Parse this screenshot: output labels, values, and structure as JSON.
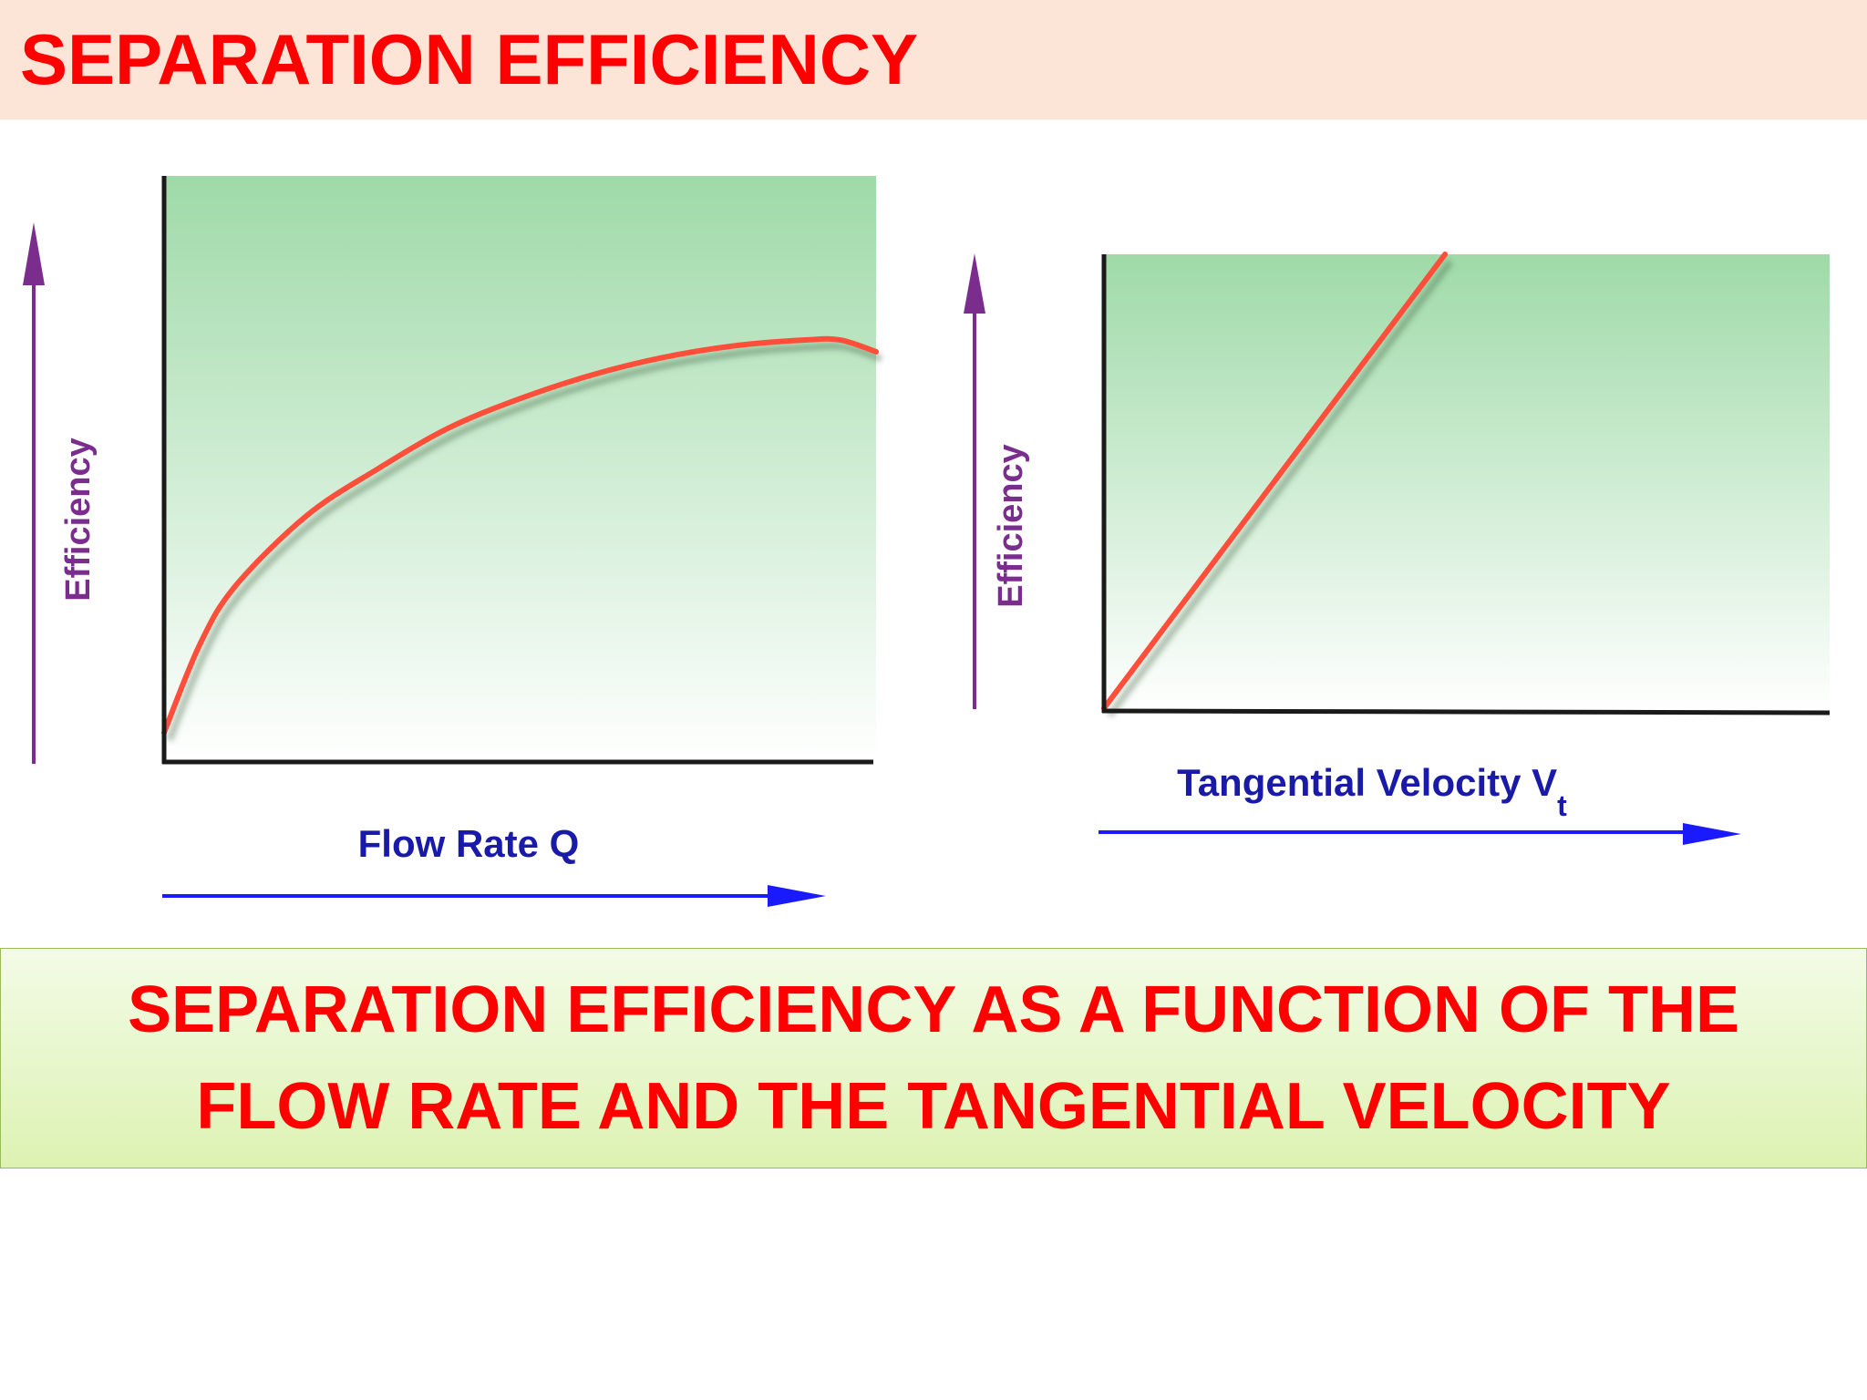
{
  "header": {
    "title": "SEPARATION EFFICIENCY"
  },
  "caption": {
    "text": "SEPARATION EFFICIENCY AS A FUNCTION OF THE FLOW RATE AND THE TANGENTIAL VELOCITY"
  },
  "colors": {
    "title_bg": "#fce4d6",
    "title_text": "#ff0000",
    "curve": "#ff4e3a",
    "y_arrow": "#7b2d8e",
    "x_arrow": "#1a1aff",
    "plot_bg_top": "#9fdaa8",
    "plot_bg_bottom": "#ffffff"
  },
  "chart_data": [
    {
      "type": "line",
      "ylabel": "Efficiency",
      "xlabel": "Flow Rate Q",
      "shape": "concave increasing, levelling off",
      "x": [
        0,
        0.05,
        0.1,
        0.2,
        0.3,
        0.4,
        0.5,
        0.6,
        0.7,
        0.8,
        0.9,
        0.95,
        1.0
      ],
      "y": [
        0.05,
        0.2,
        0.3,
        0.42,
        0.5,
        0.57,
        0.62,
        0.66,
        0.69,
        0.71,
        0.72,
        0.72,
        0.7
      ]
    },
    {
      "type": "line",
      "ylabel": "Efficiency",
      "xlabel": "Tangential Velocity V",
      "xlabel_subscript": "t",
      "shape": "linear increasing",
      "x": [
        0,
        0.47
      ],
      "y": [
        0.01,
        1.0
      ]
    }
  ]
}
